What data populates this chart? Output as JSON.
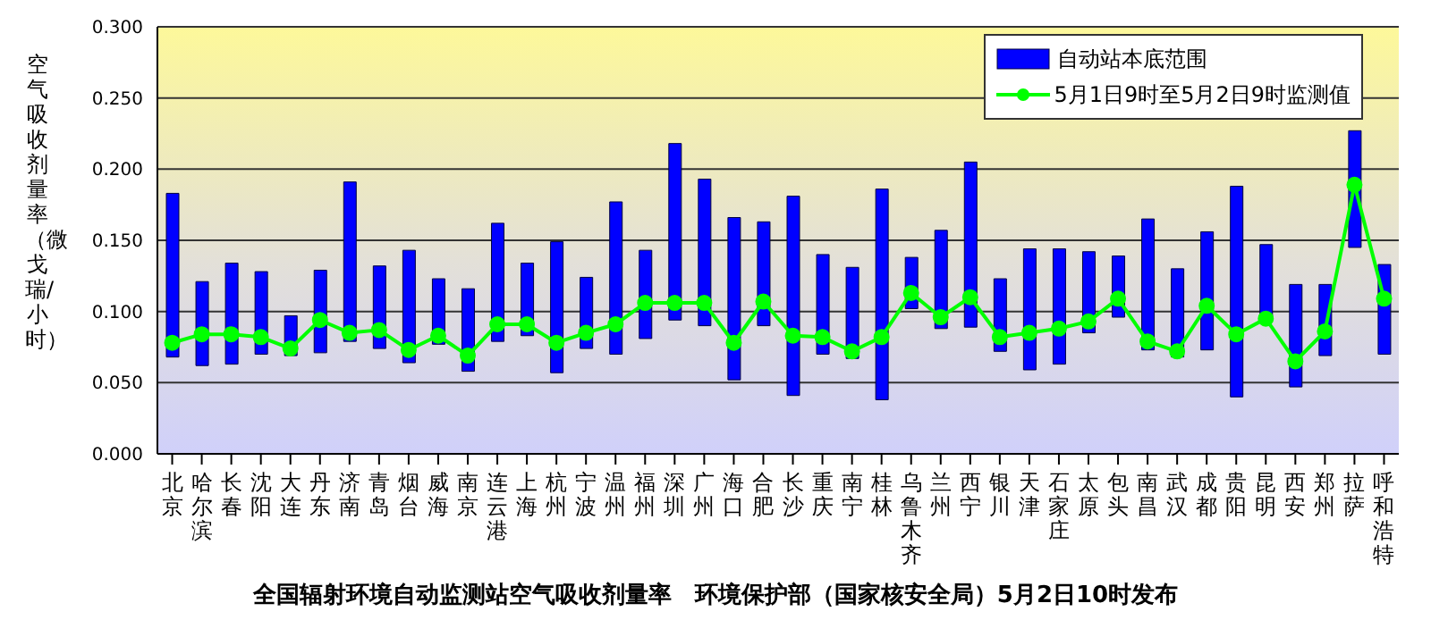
{
  "chart_data": {
    "type": "bar",
    "title": "全国辐射环境自动监测站空气吸收剂量率　环境保护部（国家核安全局）5月2日10时发布",
    "ylabel": "空气吸收剂量率（微戈瑞/小时）",
    "categories": [
      "北京",
      "哈尔滨",
      "长春",
      "沈阳",
      "大连",
      "丹东",
      "济南",
      "青岛",
      "烟台",
      "威海",
      "南京",
      "连云港",
      "上海",
      "杭州",
      "宁波",
      "温州",
      "福州",
      "深圳",
      "广州",
      "海口",
      "合肥",
      "长沙",
      "重庆",
      "南宁",
      "桂林",
      "乌鲁木齐",
      "兰州",
      "西宁",
      "银川",
      "天津",
      "石家庄",
      "太原",
      "包头",
      "南昌",
      "武汉",
      "成都",
      "贵阳",
      "昆明",
      "西安",
      "郑州",
      "拉萨",
      "呼和浩特"
    ],
    "series": [
      {
        "name": "自动站本底范围",
        "type": "bar",
        "color": "#0000ff",
        "base": [
          0.068,
          0.062,
          0.063,
          0.07,
          0.069,
          0.071,
          0.079,
          0.074,
          0.064,
          0.077,
          0.058,
          0.079,
          0.083,
          0.057,
          0.074,
          0.07,
          0.081,
          0.094,
          0.09,
          0.052,
          0.09,
          0.041,
          0.07,
          0.067,
          0.038,
          0.102,
          0.088,
          0.089,
          0.072,
          0.059,
          0.063,
          0.085,
          0.096,
          0.073,
          0.068,
          0.073,
          0.04,
          0.095,
          0.047,
          0.069,
          0.145,
          0.07
        ],
        "values": [
          0.115,
          0.059,
          0.071,
          0.058,
          0.028,
          0.058,
          0.112,
          0.058,
          0.079,
          0.046,
          0.058,
          0.083,
          0.051,
          0.092,
          0.05,
          0.107,
          0.062,
          0.124,
          0.103,
          0.114,
          0.073,
          0.14,
          0.07,
          0.064,
          0.148,
          0.036,
          0.069,
          0.116,
          0.051,
          0.085,
          0.081,
          0.057,
          0.043,
          0.092,
          0.062,
          0.083,
          0.148,
          0.052,
          0.072,
          0.05,
          0.082,
          0.063
        ]
      },
      {
        "name": "5月1日9时至5月2日9时监测值",
        "type": "line",
        "color": "#00ff00",
        "marker": "circle",
        "values": [
          0.078,
          0.084,
          0.084,
          0.082,
          0.074,
          0.094,
          0.085,
          0.087,
          0.073,
          0.083,
          0.069,
          0.091,
          0.091,
          0.078,
          0.085,
          0.091,
          0.106,
          0.106,
          0.106,
          0.078,
          0.107,
          0.083,
          0.082,
          0.072,
          0.082,
          0.113,
          0.096,
          0.11,
          0.082,
          0.085,
          0.088,
          0.093,
          0.109,
          0.079,
          0.072,
          0.104,
          0.084,
          0.095,
          0.065,
          0.086,
          0.189,
          0.109
        ]
      }
    ],
    "ylim": [
      0,
      0.3
    ],
    "yticks": [
      {
        "value": 0,
        "label": "0.000"
      },
      {
        "value": 0.05,
        "label": "0.050"
      },
      {
        "value": 0.1,
        "label": "0.100"
      },
      {
        "value": 0.15,
        "label": "0.150"
      },
      {
        "value": 0.2,
        "label": "0.200"
      },
      {
        "value": 0.25,
        "label": "0.250"
      },
      {
        "value": 0.3,
        "label": "0.300"
      }
    ],
    "grid": "y",
    "legend": "top right"
  }
}
